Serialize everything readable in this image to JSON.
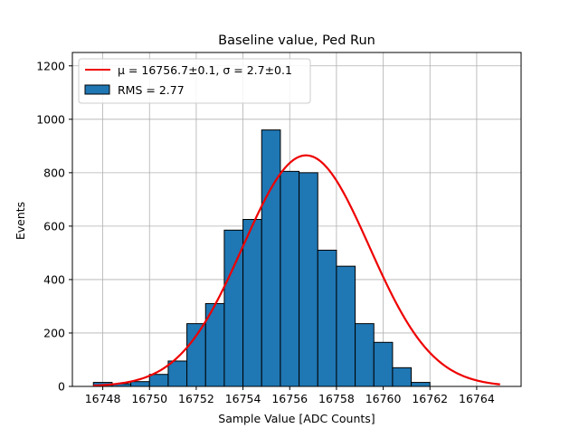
{
  "chart_data": {
    "type": "bar",
    "title": "Baseline value, Ped Run",
    "xlabel": "Sample Value [ADC Counts]",
    "ylabel": "Events",
    "xlim": [
      16746.7,
      16765.9
    ],
    "ylim": [
      0,
      1250
    ],
    "xticks": [
      16748,
      16750,
      16752,
      16754,
      16756,
      16758,
      16760,
      16762,
      16764
    ],
    "yticks": [
      0,
      200,
      400,
      600,
      800,
      1000,
      1200
    ],
    "grid": true,
    "legend_placement": "upper-left",
    "bins": {
      "edges": [
        16747.6,
        16748.4,
        16749.2,
        16750.0,
        16750.8,
        16751.6,
        16752.4,
        16753.2,
        16754.0,
        16754.8,
        16755.6,
        16756.4,
        16757.2,
        16758.0,
        16758.8,
        16759.6,
        16760.4,
        16761.2,
        16762.0,
        16762.8,
        16763.6,
        16764.4
      ],
      "counts": [
        15,
        10,
        18,
        45,
        95,
        235,
        310,
        585,
        625,
        960,
        805,
        800,
        510,
        450,
        235,
        165,
        70,
        15,
        0,
        0,
        0
      ]
    },
    "series": [
      {
        "name": "RMS = 2.77",
        "kind": "histogram",
        "color": "#1f77b4",
        "edgecolor": "#000000"
      },
      {
        "name": "$\\mu = 16756.7 \\pm 0.1, \\sigma = 2.7 \\pm 0.1$",
        "label_display": "μ = 16756.7±0.1, σ = 2.7±0.1",
        "kind": "gaussian-fit",
        "color": "#ee0000",
        "amplitude": 865,
        "mu": 16756.7,
        "sigma": 2.7,
        "x_range": [
          16747.6,
          16765.0
        ]
      }
    ]
  }
}
